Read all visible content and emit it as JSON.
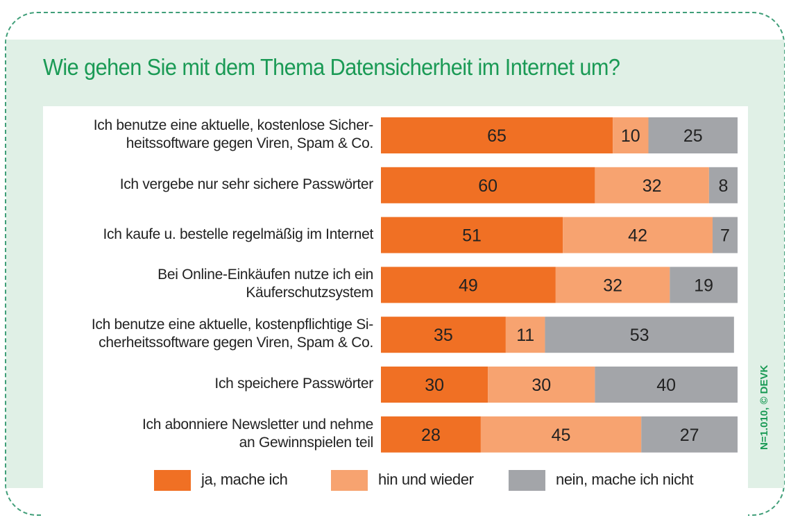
{
  "chart_data": {
    "type": "bar",
    "orientation": "horizontal",
    "stacked": true,
    "title": "Wie gehen Sie mit dem Thema Datensicherheit im Internet um?",
    "xlabel": "",
    "ylabel": "",
    "xlim": [
      0,
      100
    ],
    "grid": false,
    "legend_position": "bottom",
    "categories": [
      [
        "Ich benutze eine aktuelle, kostenlose Sicher-",
        "heitssoftware gegen Viren, Spam & Co."
      ],
      [
        "Ich vergebe nur sehr sichere Passwörter"
      ],
      [
        "Ich kaufe u. bestelle regelmäßig im Internet"
      ],
      [
        "Bei Online-Einkäufen nutze ich ein",
        "Käuferschutzsystem"
      ],
      [
        "Ich benutze eine aktuelle, kostenpflichtige Si-",
        "cherheitssoftware gegen Viren, Spam & Co."
      ],
      [
        "Ich speichere Passwörter"
      ],
      [
        "Ich abonniere Newsletter und nehme",
        "an Gewinnspielen teil"
      ]
    ],
    "series": [
      {
        "name": "ja, mache ich",
        "color": "#f07024",
        "values": [
          65,
          60,
          51,
          49,
          35,
          30,
          28
        ]
      },
      {
        "name": "hin und wieder",
        "color": "#f7a370",
        "values": [
          10,
          32,
          42,
          32,
          11,
          30,
          45
        ]
      },
      {
        "name": "nein, mache ich nicht",
        "color": "#a3a5a9",
        "values": [
          25,
          8,
          7,
          19,
          53,
          40,
          27
        ]
      }
    ],
    "source_note": "N=1.010, © DEVK"
  }
}
